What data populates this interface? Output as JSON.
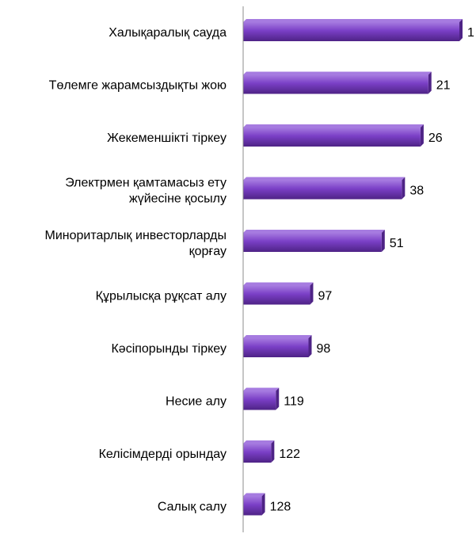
{
  "chart_data": {
    "type": "bar",
    "orientation": "horizontal",
    "title": "",
    "xlabel": "",
    "ylabel": "",
    "grid": false,
    "legend": "none",
    "bar_color": "#7A3FC6",
    "bar_highlight": "#A67BE0",
    "bar_shadow": "#4E2386",
    "axis_color": "#8C8C8C",
    "value_axis": "reversed",
    "categories": [
      [
        "Халықаралық сауда"
      ],
      [
        "Төлемге жарамсыздықты жою"
      ],
      [
        "Жекеменшікті тіркеу"
      ],
      [
        "Электрмен қамтамасыз ету",
        "жүйесіне қосылу"
      ],
      [
        "Миноритарлық инвесторларды",
        "қорғау"
      ],
      [
        "Құрылысқа рұқсат алу"
      ],
      [
        "Кәсіпорынды тіркеу"
      ],
      [
        "Несие алу"
      ],
      [
        "Келісімдерді орындау"
      ],
      [
        "Салық салу"
      ]
    ],
    "values": [
      1,
      21,
      26,
      38,
      51,
      97,
      98,
      119,
      122,
      128
    ]
  }
}
